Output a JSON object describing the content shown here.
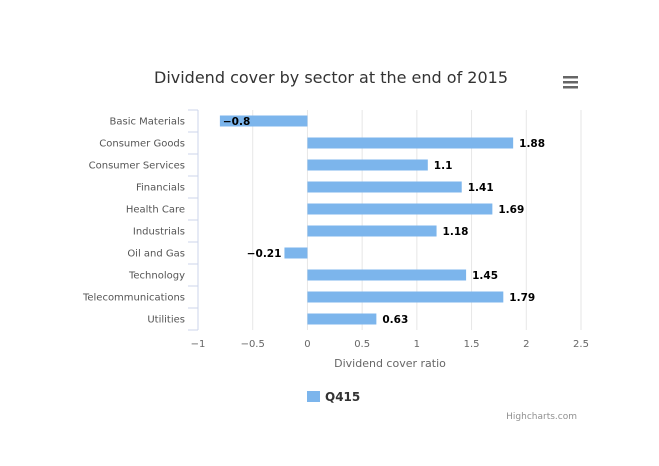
{
  "chart_data": {
    "type": "bar",
    "orientation": "horizontal",
    "title": "Dividend cover by sector at the end of 2015",
    "xlabel": "Dividend cover ratio",
    "ylabel": "",
    "categories": [
      "Basic Materials",
      "Consumer Goods",
      "Consumer Services",
      "Financials",
      "Health Care",
      "Industrials",
      "Oil and Gas",
      "Technology",
      "Telecommunications",
      "Utilities"
    ],
    "series": [
      {
        "name": "Q415",
        "color": "#7cb5ec",
        "values": [
          -0.8,
          1.88,
          1.1,
          1.41,
          1.69,
          1.18,
          -0.21,
          1.45,
          1.79,
          0.63
        ]
      }
    ],
    "data_labels": [
      "−0.8",
      "1.88",
      "1.1",
      "1.41",
      "1.69",
      "1.18",
      "−0.21",
      "1.45",
      "1.79",
      "0.63"
    ],
    "xlim": [
      -1,
      2.5
    ],
    "xticks": [
      -1,
      -0.5,
      0,
      0.5,
      1,
      1.5,
      2,
      2.5
    ],
    "xtick_labels": [
      "−1",
      "−0.5",
      "0",
      "0.5",
      "1",
      "1.5",
      "2",
      "2.5"
    ],
    "grid": true,
    "legend_position": "bottom"
  },
  "credit": "Highcharts.com",
  "menu_icon": "hamburger-menu-icon"
}
